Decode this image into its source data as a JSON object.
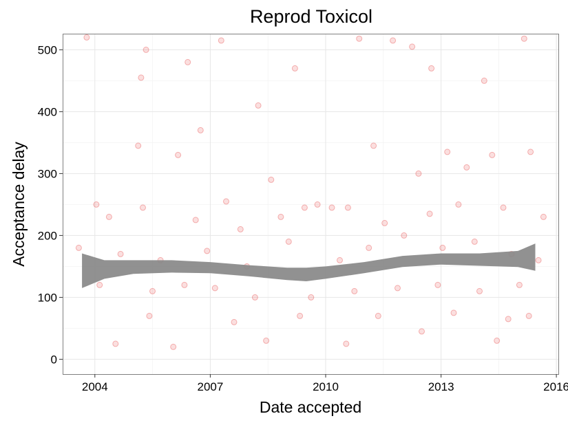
{
  "chart_data": {
    "type": "scatter",
    "title": "Reprod Toxicol",
    "xlabel": "Date accepted",
    "ylabel": "Acceptance delay",
    "x_type": "date",
    "xlim": [
      "2003-03-01",
      "2016-01-20"
    ],
    "ylim": [
      -24,
      526
    ],
    "x_ticks": [
      "2004",
      "2007",
      "2010",
      "2013",
      "2016"
    ],
    "y_ticks": [
      0,
      100,
      200,
      300,
      400,
      500
    ],
    "grid": true,
    "legend": "none",
    "point_color": "#e41a1c",
    "band_color": "#888888",
    "smooth": {
      "method": "loess with confidence band",
      "x": [
        "2003-09-01",
        "2004-04-01",
        "2005-01-01",
        "2006-01-01",
        "2007-01-01",
        "2008-01-01",
        "2009-01-01",
        "2009-07-01",
        "2010-01-01",
        "2011-01-01",
        "2012-01-01",
        "2013-01-01",
        "2014-01-01",
        "2015-01-01",
        "2015-06-15"
      ],
      "fit": [
        142,
        145,
        149,
        150,
        148,
        143,
        138,
        137,
        140,
        148,
        158,
        162,
        161,
        162,
        165
      ],
      "lower": [
        115,
        130,
        138,
        140,
        139,
        134,
        128,
        126,
        130,
        139,
        149,
        153,
        151,
        149,
        143
      ],
      "upper": [
        171,
        160,
        160,
        160,
        157,
        152,
        148,
        148,
        150,
        157,
        167,
        171,
        171,
        175,
        187
      ]
    },
    "series": [
      {
        "x": [
          "2003-10-15",
          "2005-05-01",
          "2007-04-15",
          "2005-03-15",
          "2006-06-01",
          "2006-10-01",
          "2008-04-01",
          "2009-03-15",
          "2010-11-15",
          "2011-10-01",
          "2012-04-01",
          "2012-10-01",
          "2014-02-15",
          "2015-03-01",
          "2004-01-15",
          "2005-02-15",
          "2006-03-01",
          "2007-06-01",
          "2008-08-01",
          "2009-06-15",
          "2010-08-01",
          "2011-04-01",
          "2012-06-01",
          "2013-03-01",
          "2013-09-01",
          "2014-05-01",
          "2015-05-01",
          "2004-05-15",
          "2005-04-01",
          "2006-08-15",
          "2007-10-15",
          "2008-11-01",
          "2009-10-15",
          "2010-03-01",
          "2011-07-15",
          "2012-09-15",
          "2013-06-15",
          "2014-08-15",
          "2015-09-01",
          "2003-08-01",
          "2004-09-01",
          "2005-09-15",
          "2006-12-01",
          "2007-12-15",
          "2009-01-15",
          "2010-05-15",
          "2011-02-15",
          "2012-01-15",
          "2013-01-15",
          "2013-11-15",
          "2014-11-01",
          "2015-07-15",
          "2004-02-15",
          "2005-07-01",
          "2006-05-01",
          "2007-02-15",
          "2008-03-01",
          "2009-08-15",
          "2010-10-01",
          "2011-11-15",
          "2012-12-01",
          "2014-01-01",
          "2015-01-15",
          "2005-06-01",
          "2007-08-15",
          "2009-05-01",
          "2011-05-15",
          "2013-05-01",
          "2014-10-01",
          "2015-04-15",
          "2004-07-15",
          "2006-01-15",
          "2008-06-15",
          "2010-07-15",
          "2012-07-01",
          "2014-06-15"
        ],
        "y": [
          520,
          500,
          515,
          455,
          480,
          370,
          410,
          470,
          518,
          515,
          505,
          470,
          450,
          518,
          250,
          345,
          330,
          255,
          290,
          245,
          245,
          345,
          300,
          335,
          310,
          330,
          335,
          230,
          245,
          225,
          210,
          230,
          250,
          245,
          220,
          235,
          250,
          245,
          230,
          180,
          170,
          160,
          175,
          150,
          190,
          160,
          180,
          200,
          180,
          190,
          170,
          160,
          120,
          110,
          120,
          115,
          100,
          100,
          110,
          115,
          120,
          110,
          120,
          70,
          60,
          70,
          70,
          75,
          65,
          70,
          25,
          20,
          30,
          25,
          45,
          30
        ]
      }
    ]
  }
}
